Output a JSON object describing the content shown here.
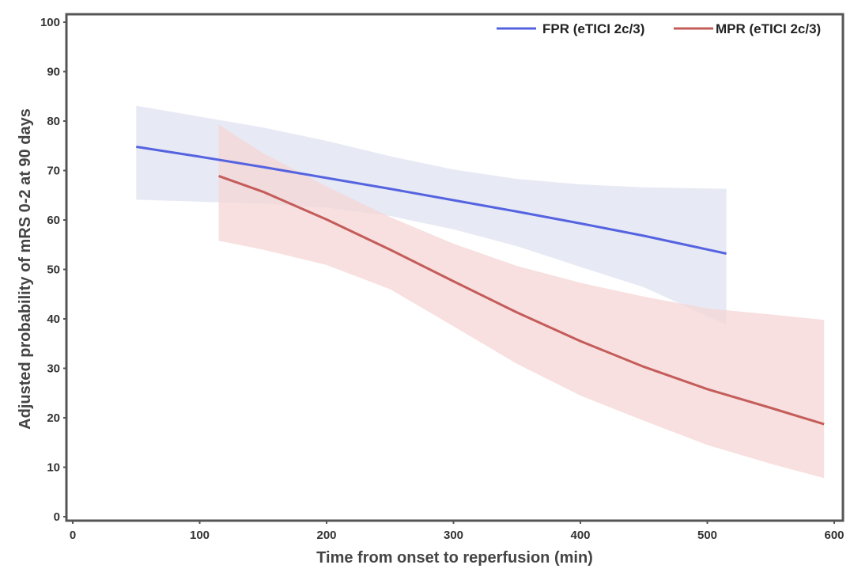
{
  "chart_data": {
    "type": "line",
    "xlabel": "Time from onset to reperfusion (min)",
    "ylabel": "Adjusted probability of mRS 0-2 at 90 days",
    "xlim": [
      0,
      600
    ],
    "ylim": [
      0,
      100
    ],
    "xticks": [
      0,
      100,
      200,
      300,
      400,
      500,
      600
    ],
    "yticks": [
      0,
      10,
      20,
      30,
      40,
      50,
      60,
      70,
      80,
      90,
      100
    ],
    "grid": false,
    "legend_position": "top-right",
    "series": [
      {
        "name": "FPR (eTICI 2c/3)",
        "color": "#5563e0",
        "band_color": "#dfe3f2",
        "x": [
          50,
          100,
          150,
          200,
          250,
          300,
          350,
          400,
          450,
          515
        ],
        "y": [
          74.8,
          72.8,
          70.7,
          68.5,
          66.3,
          64,
          61.7,
          59.3,
          56.8,
          53.2
        ],
        "lower": [
          64.1,
          63.7,
          63.3,
          62.5,
          60.8,
          58.1,
          54.7,
          50.5,
          46.4,
          38.8
        ],
        "upper": [
          83.1,
          80.9,
          78.7,
          76,
          72.9,
          70.2,
          68.3,
          67.2,
          66.6,
          66.3
        ]
      },
      {
        "name": "MPR (eTICI 2c/3)",
        "color": "#c45c5a",
        "band_color": "#f4d6d4",
        "x": [
          115,
          150,
          200,
          250,
          300,
          350,
          400,
          450,
          500,
          550,
          592
        ],
        "y": [
          68.9,
          65.7,
          60.1,
          54,
          47.6,
          41.3,
          35.5,
          30.3,
          25.8,
          22,
          18.7
        ],
        "lower": [
          55.8,
          54,
          50.9,
          46,
          38.5,
          30.9,
          24.5,
          19.4,
          14.5,
          10.7,
          7.8
        ],
        "upper": [
          79.3,
          73.5,
          66.8,
          60.6,
          55.2,
          50.7,
          47.3,
          44.5,
          42.1,
          40.9,
          39.8
        ]
      }
    ]
  }
}
